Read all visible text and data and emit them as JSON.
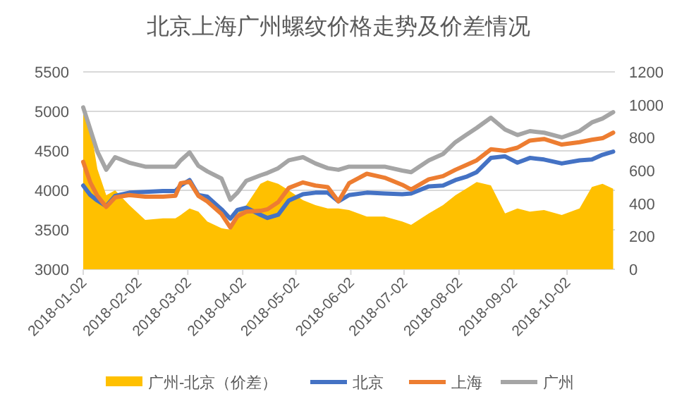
{
  "chart_data": {
    "type": "line",
    "title": "北京上海广州螺纹价格走势及价差情况",
    "x": [
      "2018-01-02",
      "2018-01-06",
      "2018-01-10",
      "2018-01-15",
      "2018-01-20",
      "2018-01-28",
      "2018-02-06",
      "2018-02-16",
      "2018-02-23",
      "2018-02-26",
      "2018-03-03",
      "2018-03-08",
      "2018-03-13",
      "2018-03-21",
      "2018-03-26",
      "2018-03-30",
      "2018-04-04",
      "2018-04-12",
      "2018-04-16",
      "2018-04-22",
      "2018-04-28",
      "2018-05-06",
      "2018-05-13",
      "2018-05-20",
      "2018-05-26",
      "2018-06-01",
      "2018-06-11",
      "2018-06-21",
      "2018-07-01",
      "2018-07-06",
      "2018-07-16",
      "2018-07-24",
      "2018-07-31",
      "2018-08-06",
      "2018-08-12",
      "2018-08-20",
      "2018-08-28",
      "2018-09-04",
      "2018-09-11",
      "2018-09-19",
      "2018-09-29",
      "2018-10-09",
      "2018-10-16",
      "2018-10-22",
      "2018-10-28"
    ],
    "series": [
      {
        "name": "广州-北京（价差）",
        "type": "area",
        "axis": "y2",
        "color": "#ffc000",
        "values": [
          980,
          870,
          610,
          450,
          480,
          390,
          300,
          310,
          310,
          330,
          370,
          350,
          290,
          250,
          240,
          340,
          390,
          520,
          540,
          520,
          480,
          420,
          390,
          370,
          370,
          360,
          320,
          320,
          290,
          270,
          340,
          390,
          450,
          490,
          530,
          510,
          340,
          370,
          350,
          360,
          330,
          370,
          500,
          520,
          490
        ]
      },
      {
        "name": "北京",
        "color": "#4472c4",
        "values": [
          4060,
          3940,
          3870,
          3800,
          3930,
          3970,
          3980,
          3990,
          3990,
          4060,
          4130,
          3940,
          3920,
          3760,
          3640,
          3750,
          3780,
          3690,
          3650,
          3690,
          3870,
          3950,
          3970,
          3970,
          3860,
          3940,
          3970,
          3960,
          3950,
          3960,
          4050,
          4060,
          4130,
          4170,
          4230,
          4410,
          4430,
          4350,
          4410,
          4390,
          4340,
          4380,
          4390,
          4450,
          4490
        ]
      },
      {
        "name": "上海",
        "color": "#ed7d31",
        "values": [
          4360,
          4100,
          3930,
          3790,
          3910,
          3940,
          3920,
          3920,
          3930,
          4090,
          4110,
          3930,
          3860,
          3700,
          3530,
          3670,
          3730,
          3740,
          3760,
          3850,
          4030,
          4100,
          4060,
          4040,
          3860,
          4090,
          4210,
          4160,
          4070,
          4010,
          4140,
          4180,
          4260,
          4320,
          4380,
          4520,
          4500,
          4540,
          4630,
          4650,
          4580,
          4610,
          4640,
          4660,
          4730
        ]
      },
      {
        "name": "广州",
        "color": "#a5a5a5",
        "values": [
          5050,
          4770,
          4490,
          4260,
          4420,
          4350,
          4300,
          4300,
          4300,
          4380,
          4480,
          4310,
          4240,
          4150,
          3880,
          3970,
          4120,
          4190,
          4220,
          4280,
          4380,
          4420,
          4340,
          4280,
          4260,
          4300,
          4300,
          4300,
          4250,
          4230,
          4380,
          4460,
          4610,
          4700,
          4790,
          4920,
          4770,
          4700,
          4750,
          4730,
          4670,
          4750,
          4860,
          4910,
          4990
        ]
      }
    ],
    "xlim": [
      "2018-01-02",
      "2018-10-29"
    ],
    "xticks": [
      "2018-01-02",
      "2018-02-02",
      "2018-03-02",
      "2018-04-02",
      "2018-05-02",
      "2018-06-02",
      "2018-07-02",
      "2018-08-02",
      "2018-09-02",
      "2018-10-02"
    ],
    "ylim": [
      3000,
      5500
    ],
    "yticks": [
      3000,
      3500,
      4000,
      4500,
      5000,
      5500
    ],
    "y2lim": [
      0,
      1200
    ],
    "y2ticks": [
      0,
      200,
      400,
      600,
      800,
      1000,
      1200
    ],
    "grid": "y",
    "legend": "bottom"
  }
}
